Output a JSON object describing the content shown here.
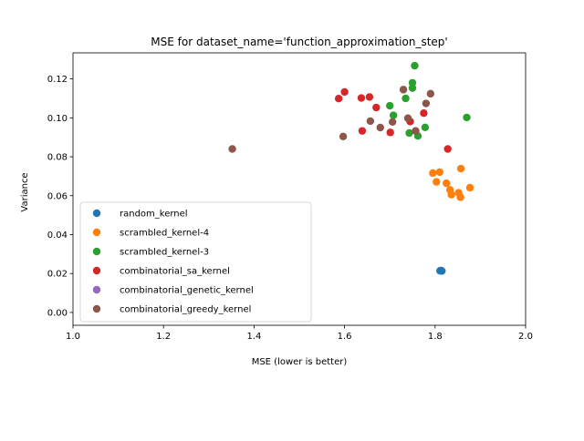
{
  "chart_data": {
    "type": "scatter",
    "title": "MSE for dataset_name='function_approximation_step'",
    "xlabel": "MSE (lower is better)",
    "ylabel": "Variance",
    "xlim": [
      1.0,
      2.0
    ],
    "ylim": [
      -0.0066,
      0.1334
    ],
    "xticks": [
      1.0,
      1.2,
      1.4,
      1.6,
      1.8,
      2.0
    ],
    "xtick_labels": [
      "1.0",
      "1.2",
      "1.4",
      "1.6",
      "1.8",
      "2.0"
    ],
    "yticks": [
      0.0,
      0.02,
      0.04,
      0.06,
      0.08,
      0.1,
      0.12
    ],
    "ytick_labels": [
      "0.00",
      "0.02",
      "0.04",
      "0.06",
      "0.08",
      "0.10",
      "0.12"
    ],
    "grid": false,
    "legend_position": "lower-left",
    "series": [
      {
        "name": "random_kernel",
        "color": "#1f77b4",
        "points": [
          [
            1.812,
            0.0214
          ],
          [
            1.814,
            0.0214
          ],
          [
            1.813,
            0.0215
          ],
          [
            1.811,
            0.0214
          ],
          [
            1.815,
            0.0213
          ]
        ]
      },
      {
        "name": "scrambled_kernel-4",
        "color": "#ff7f0e",
        "points": [
          [
            1.795,
            0.0716
          ],
          [
            1.81,
            0.0721
          ],
          [
            1.803,
            0.0671
          ],
          [
            1.825,
            0.0664
          ],
          [
            1.833,
            0.063
          ],
          [
            1.836,
            0.0605
          ],
          [
            1.852,
            0.0615
          ],
          [
            1.856,
            0.0592
          ],
          [
            1.857,
            0.0739
          ],
          [
            1.877,
            0.0641
          ]
        ]
      },
      {
        "name": "scrambled_kernel-3",
        "color": "#2ca02c",
        "points": [
          [
            1.755,
            0.1268
          ],
          [
            1.75,
            0.118
          ],
          [
            1.75,
            0.1153
          ],
          [
            1.735,
            0.11
          ],
          [
            1.7,
            0.1062
          ],
          [
            1.708,
            0.1013
          ],
          [
            1.743,
            0.0922
          ],
          [
            1.762,
            0.0907
          ],
          [
            1.778,
            0.0951
          ],
          [
            1.87,
            0.1002
          ]
        ]
      },
      {
        "name": "combinatorial_sa_kernel",
        "color": "#d62728",
        "points": [
          [
            1.587,
            0.1099
          ],
          [
            1.6,
            0.1133
          ],
          [
            1.637,
            0.1102
          ],
          [
            1.655,
            0.1107
          ],
          [
            1.67,
            0.1053
          ],
          [
            1.639,
            0.0933
          ],
          [
            1.701,
            0.0925
          ],
          [
            1.745,
            0.0981
          ],
          [
            1.775,
            0.1024
          ],
          [
            1.828,
            0.084
          ]
        ]
      },
      {
        "name": "combinatorial_genetic_kernel",
        "color": "#9467bd",
        "points": []
      },
      {
        "name": "combinatorial_greedy_kernel",
        "color": "#8c564b",
        "points": [
          [
            1.352,
            0.084
          ],
          [
            1.597,
            0.0904
          ],
          [
            1.657,
            0.0983
          ],
          [
            1.679,
            0.095
          ],
          [
            1.706,
            0.0979
          ],
          [
            1.73,
            0.1145
          ],
          [
            1.74,
            0.0998
          ],
          [
            1.757,
            0.0933
          ],
          [
            1.78,
            0.1074
          ],
          [
            1.79,
            0.1124
          ]
        ]
      }
    ]
  }
}
